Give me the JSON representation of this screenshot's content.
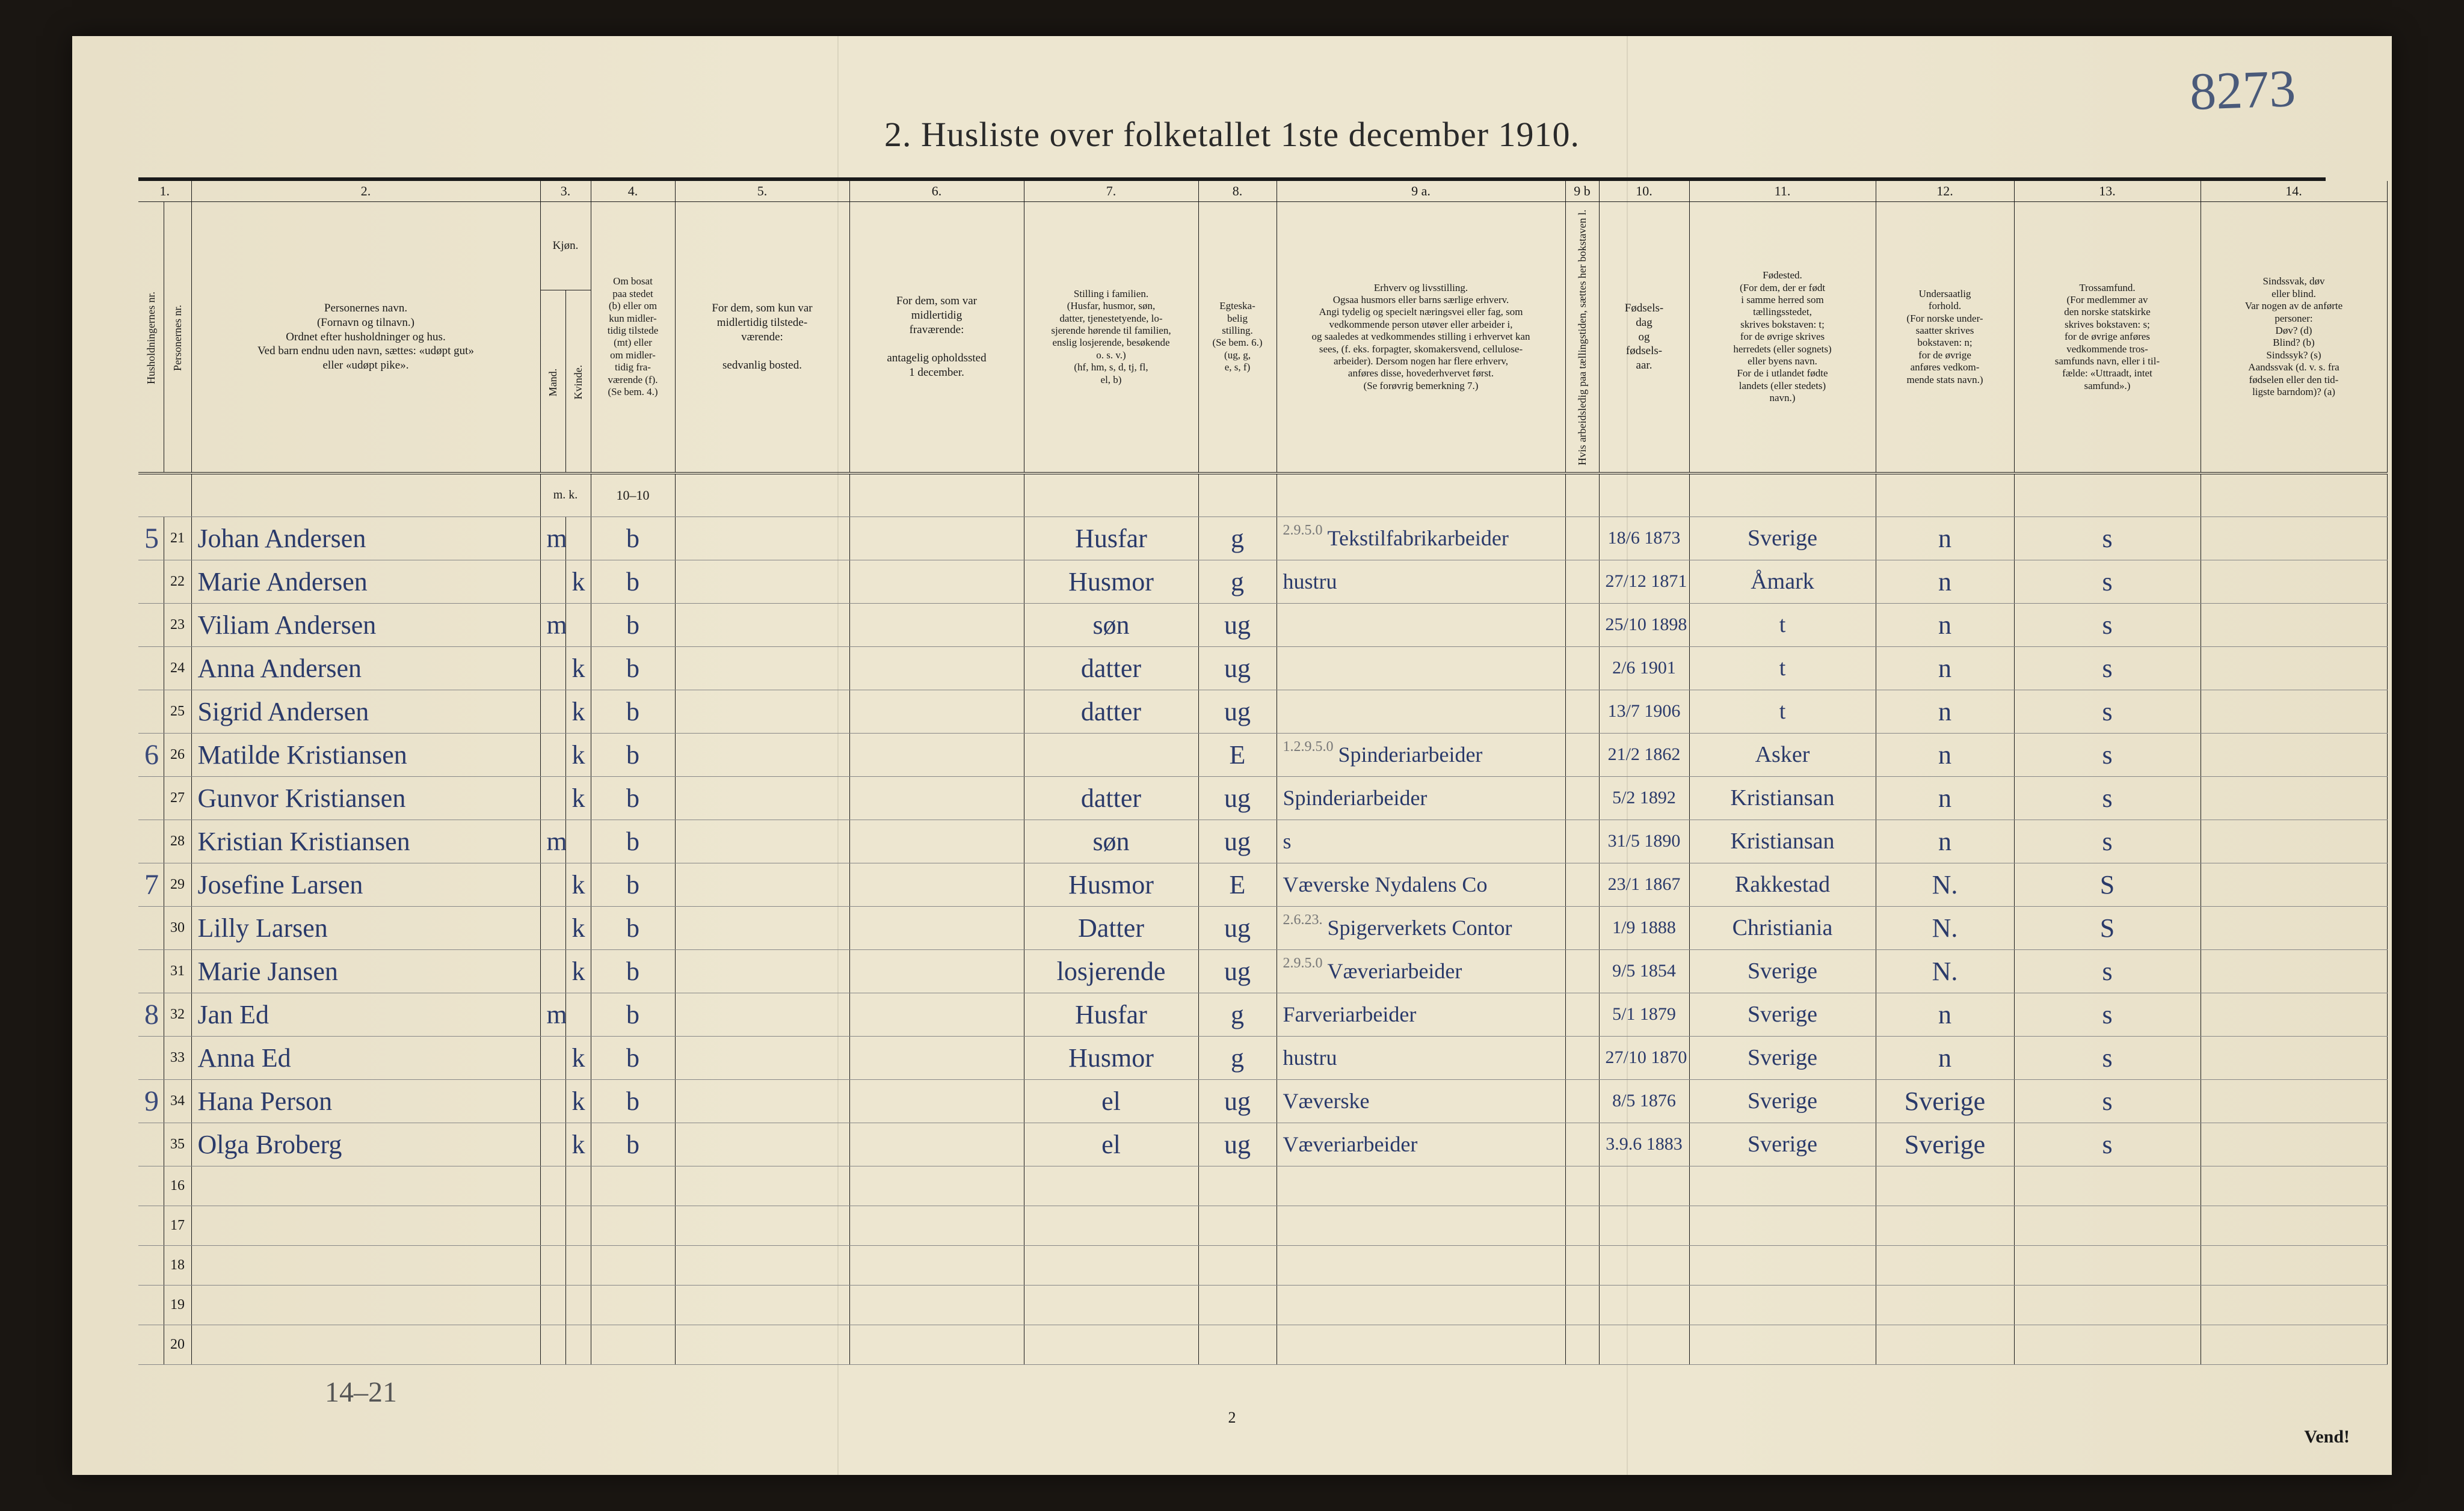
{
  "annotation_topright": "8273",
  "title": "2.  Husliste over folketallet 1ste december 1910.",
  "page_number_bottom": "2",
  "turn_over": "Vend!",
  "bottom_pencil": "14–21",
  "column_numbers": [
    "1.",
    "2.",
    "3.",
    "4.",
    "5.",
    "6.",
    "7.",
    "8.",
    "9 a.",
    "9 b",
    "10.",
    "11.",
    "12.",
    "13.",
    "14."
  ],
  "headers": {
    "hh_nr": "Husholdningernes nr.",
    "pers_nr": "Personernes nr.",
    "name": "Personernes navn.\n(Fornavn og tilnavn.)\nOrdnet efter husholdninger og hus.\nVed barn endnu uden navn, sættes: «udøpt gut»\neller «udøpt pike».",
    "kjon": "Kjøn.",
    "mand": "Mand.",
    "kvinde": "Kvinde.",
    "mk": "m.  k.",
    "bosat": "Om bosat\npaa stedet\n(b) eller om\nkun midler-\ntidig tilstede\n(mt) eller\nom midler-\ntidig fra-\nværende (f).\n(Se bem. 4.)",
    "midl_tilst": "For dem, som kun var\nmidlertidig tilstede-\nværende:\n\nsedvanlig bosted.",
    "midl_frav": "For dem, som var\nmidlertidig\nfraværende:\n\nantagelig opholdssted\n1 december.",
    "stilling": "Stilling i familien.\n(Husfar, husmor, søn,\ndatter, tjenestetyende, lo-\nsjerende hørende til familien,\nenslig losjerende, besøkende\no. s. v.)\n(hf, hm, s, d, tj, fl,\nel, b)",
    "egte": "Egteska-\nbelig\nstilling.\n(Se bem. 6.)\n(ug, g,\ne, s, f)",
    "erhverv": "Erhverv og livsstilling.\nOgsaa husmors eller barns særlige erhverv.\nAngi tydelig og specielt næringsvei eller fag, som\nvedkommende person utøver eller arbeider i,\nog saaledes at vedkommendes stilling i erhvervet kan\nsees, (f. eks. forpagter, skomakersvend, cellulose-\narbeider). Dersom nogen har flere erhverv,\nanføres disse, hovederhvervet først.\n(Se forøvrig bemerkning 7.)",
    "arb_ledig": "Hvis arbeidsledig\npaa tællingstiden, sættes\nher bokstaven l.",
    "fodsel": "Fødsels-\ndag\nog\nfødsels-\naar.",
    "fodested": "Fødested.\n(For dem, der er født\ni samme herred som\ntællingsstedet,\nskrives bokstaven: t;\nfor de øvrige skrives\nherredets (eller sognets)\neller byens navn.\nFor de i utlandet fødte\nlandets (eller stedets)\nnavn.)",
    "undersaat": "Undersaatlig\nforhold.\n(For norske under-\nsaatter skrives\nbokstaven: n;\nfor de øvrige\nanføres vedkom-\nmende stats navn.)",
    "tros": "Trossamfund.\n(For medlemmer av\nden norske statskirke\nskrives bokstaven: s;\nfor de øvrige anføres\nvedkommende tros-\nsamfunds navn, eller i til-\nfælde: «Uttraadt, intet\nsamfund».)",
    "sinds": "Sindssvak, døv\neller blind.\nVar nogen av de anførte\npersoner:\nDøv?          (d)\nBlind?        (b)\nSindssyk?  (s)\nAandssvak (d. v. s. fra\nfødselen eller den tid-\nligste barndom)?  (a)"
  },
  "rows": [
    {
      "hh": "5",
      "nr": "21",
      "name": "Johan Andersen",
      "sex": "m",
      "bosat": "b",
      "stilling": "Husfar",
      "egte": "g",
      "erhverv_pencil": "2.9.5.0",
      "erhverv": "Tekstilfabrikarbeider",
      "dob": "18/6 1873",
      "fodested": "Sverige",
      "under": "n",
      "tros": "s"
    },
    {
      "hh": "",
      "nr": "22",
      "name": "Marie Andersen",
      "sex": "k",
      "bosat": "b",
      "stilling": "Husmor",
      "egte": "g",
      "erhverv": "hustru",
      "dob": "27/12 1871",
      "fodested": "Åmark",
      "under": "n",
      "tros": "s"
    },
    {
      "hh": "",
      "nr": "23",
      "name": "Viliam Andersen",
      "sex": "m",
      "bosat": "b",
      "stilling": "søn",
      "egte": "ug",
      "erhverv": "",
      "dob": "25/10 1898",
      "fodested": "t",
      "under": "n",
      "tros": "s"
    },
    {
      "hh": "",
      "nr": "24",
      "name": "Anna Andersen",
      "sex": "k",
      "bosat": "b",
      "stilling": "datter",
      "egte": "ug",
      "erhverv": "",
      "dob": "2/6 1901",
      "fodested": "t",
      "under": "n",
      "tros": "s"
    },
    {
      "hh": "",
      "nr": "25",
      "name": "Sigrid Andersen",
      "sex": "k",
      "bosat": "b",
      "stilling": "datter",
      "egte": "ug",
      "erhverv": "",
      "dob": "13/7 1906",
      "fodested": "t",
      "under": "n",
      "tros": "s"
    },
    {
      "hh": "6",
      "nr": "26",
      "name": "Matilde Kristiansen",
      "sex": "k",
      "bosat": "b",
      "stilling": "",
      "egte": "E",
      "erhverv_pencil": "1.2.9.5.0",
      "erhverv": "Spinderiarbeider",
      "dob": "21/2 1862",
      "fodested": "Asker",
      "under": "n",
      "tros": "s"
    },
    {
      "hh": "",
      "nr": "27",
      "name": "Gunvor Kristiansen",
      "sex": "k",
      "bosat": "b",
      "stilling": "datter",
      "egte": "ug",
      "erhverv": "Spinderiarbeider",
      "dob": "5/2 1892",
      "fodested": "Kristiansan",
      "under": "n",
      "tros": "s"
    },
    {
      "hh": "",
      "nr": "28",
      "name": "Kristian Kristiansen",
      "sex": "m",
      "bosat": "b",
      "stilling": "søn",
      "egte": "ug",
      "erhverv": "s",
      "dob": "31/5 1890",
      "fodested": "Kristiansan",
      "under": "n",
      "tros": "s"
    },
    {
      "hh": "7",
      "nr": "29",
      "name": "Josefine Larsen",
      "sex": "k",
      "bosat": "b",
      "stilling": "Husmor",
      "egte": "E",
      "erhverv": "Væverske Nydalens Co",
      "dob": "23/1 1867",
      "fodested": "Rakkestad",
      "under": "N.",
      "tros": "S"
    },
    {
      "hh": "",
      "nr": "30",
      "name": "Lilly Larsen",
      "sex": "k",
      "bosat": "b",
      "stilling": "Datter",
      "egte": "ug",
      "erhverv_pencil": "2.6.23.",
      "erhverv": "Spigerverkets Contor",
      "dob": "1/9 1888",
      "fodested": "Christiania",
      "under": "N.",
      "tros": "S"
    },
    {
      "hh": "",
      "nr": "31",
      "name": "Marie Jansen",
      "sex": "k",
      "bosat": "b",
      "stilling": "losjerende",
      "egte": "ug",
      "erhverv_pencil": "2.9.5.0",
      "erhverv": "Væveriarbeider",
      "dob": "9/5 1854",
      "fodested": "Sverige",
      "under": "N.",
      "tros": "s"
    },
    {
      "hh": "8",
      "nr": "32",
      "name": "Jan Ed",
      "sex": "m",
      "bosat": "b",
      "stilling": "Husfar",
      "egte": "g",
      "erhverv": "Farveriarbeider",
      "dob": "5/1 1879",
      "fodested": "Sverige",
      "under": "n",
      "tros": "s"
    },
    {
      "hh": "",
      "nr": "33",
      "name": "Anna Ed",
      "sex": "k",
      "bosat": "b",
      "stilling": "Husmor",
      "egte": "g",
      "erhverv": "hustru",
      "dob": "27/10 1870",
      "fodested": "Sverige",
      "under": "n",
      "tros": "s"
    },
    {
      "hh": "9",
      "nr": "34",
      "name": "Hana Person",
      "sex": "k",
      "bosat": "b",
      "stilling": "el",
      "egte": "ug",
      "erhverv": "Væverske",
      "dob": "8/5 1876",
      "fodested": "Sverige",
      "under": "Sverige",
      "tros": "s"
    },
    {
      "hh": "",
      "nr": "35",
      "name": "Olga Broberg",
      "sex": "k",
      "bosat": "b",
      "stilling": "el",
      "egte": "ug",
      "erhverv": "Væveriarbeider",
      "dob": "3.9.6 1883",
      "fodested": "Sverige",
      "under": "Sverige",
      "tros": "s"
    }
  ],
  "blank_row_numbers": [
    "16",
    "17",
    "18",
    "19",
    "20"
  ],
  "colors": {
    "paper": "#ede6d0",
    "ink": "#1a1a1a",
    "handwriting": "#2a3a6a",
    "pencil": "#555555"
  }
}
